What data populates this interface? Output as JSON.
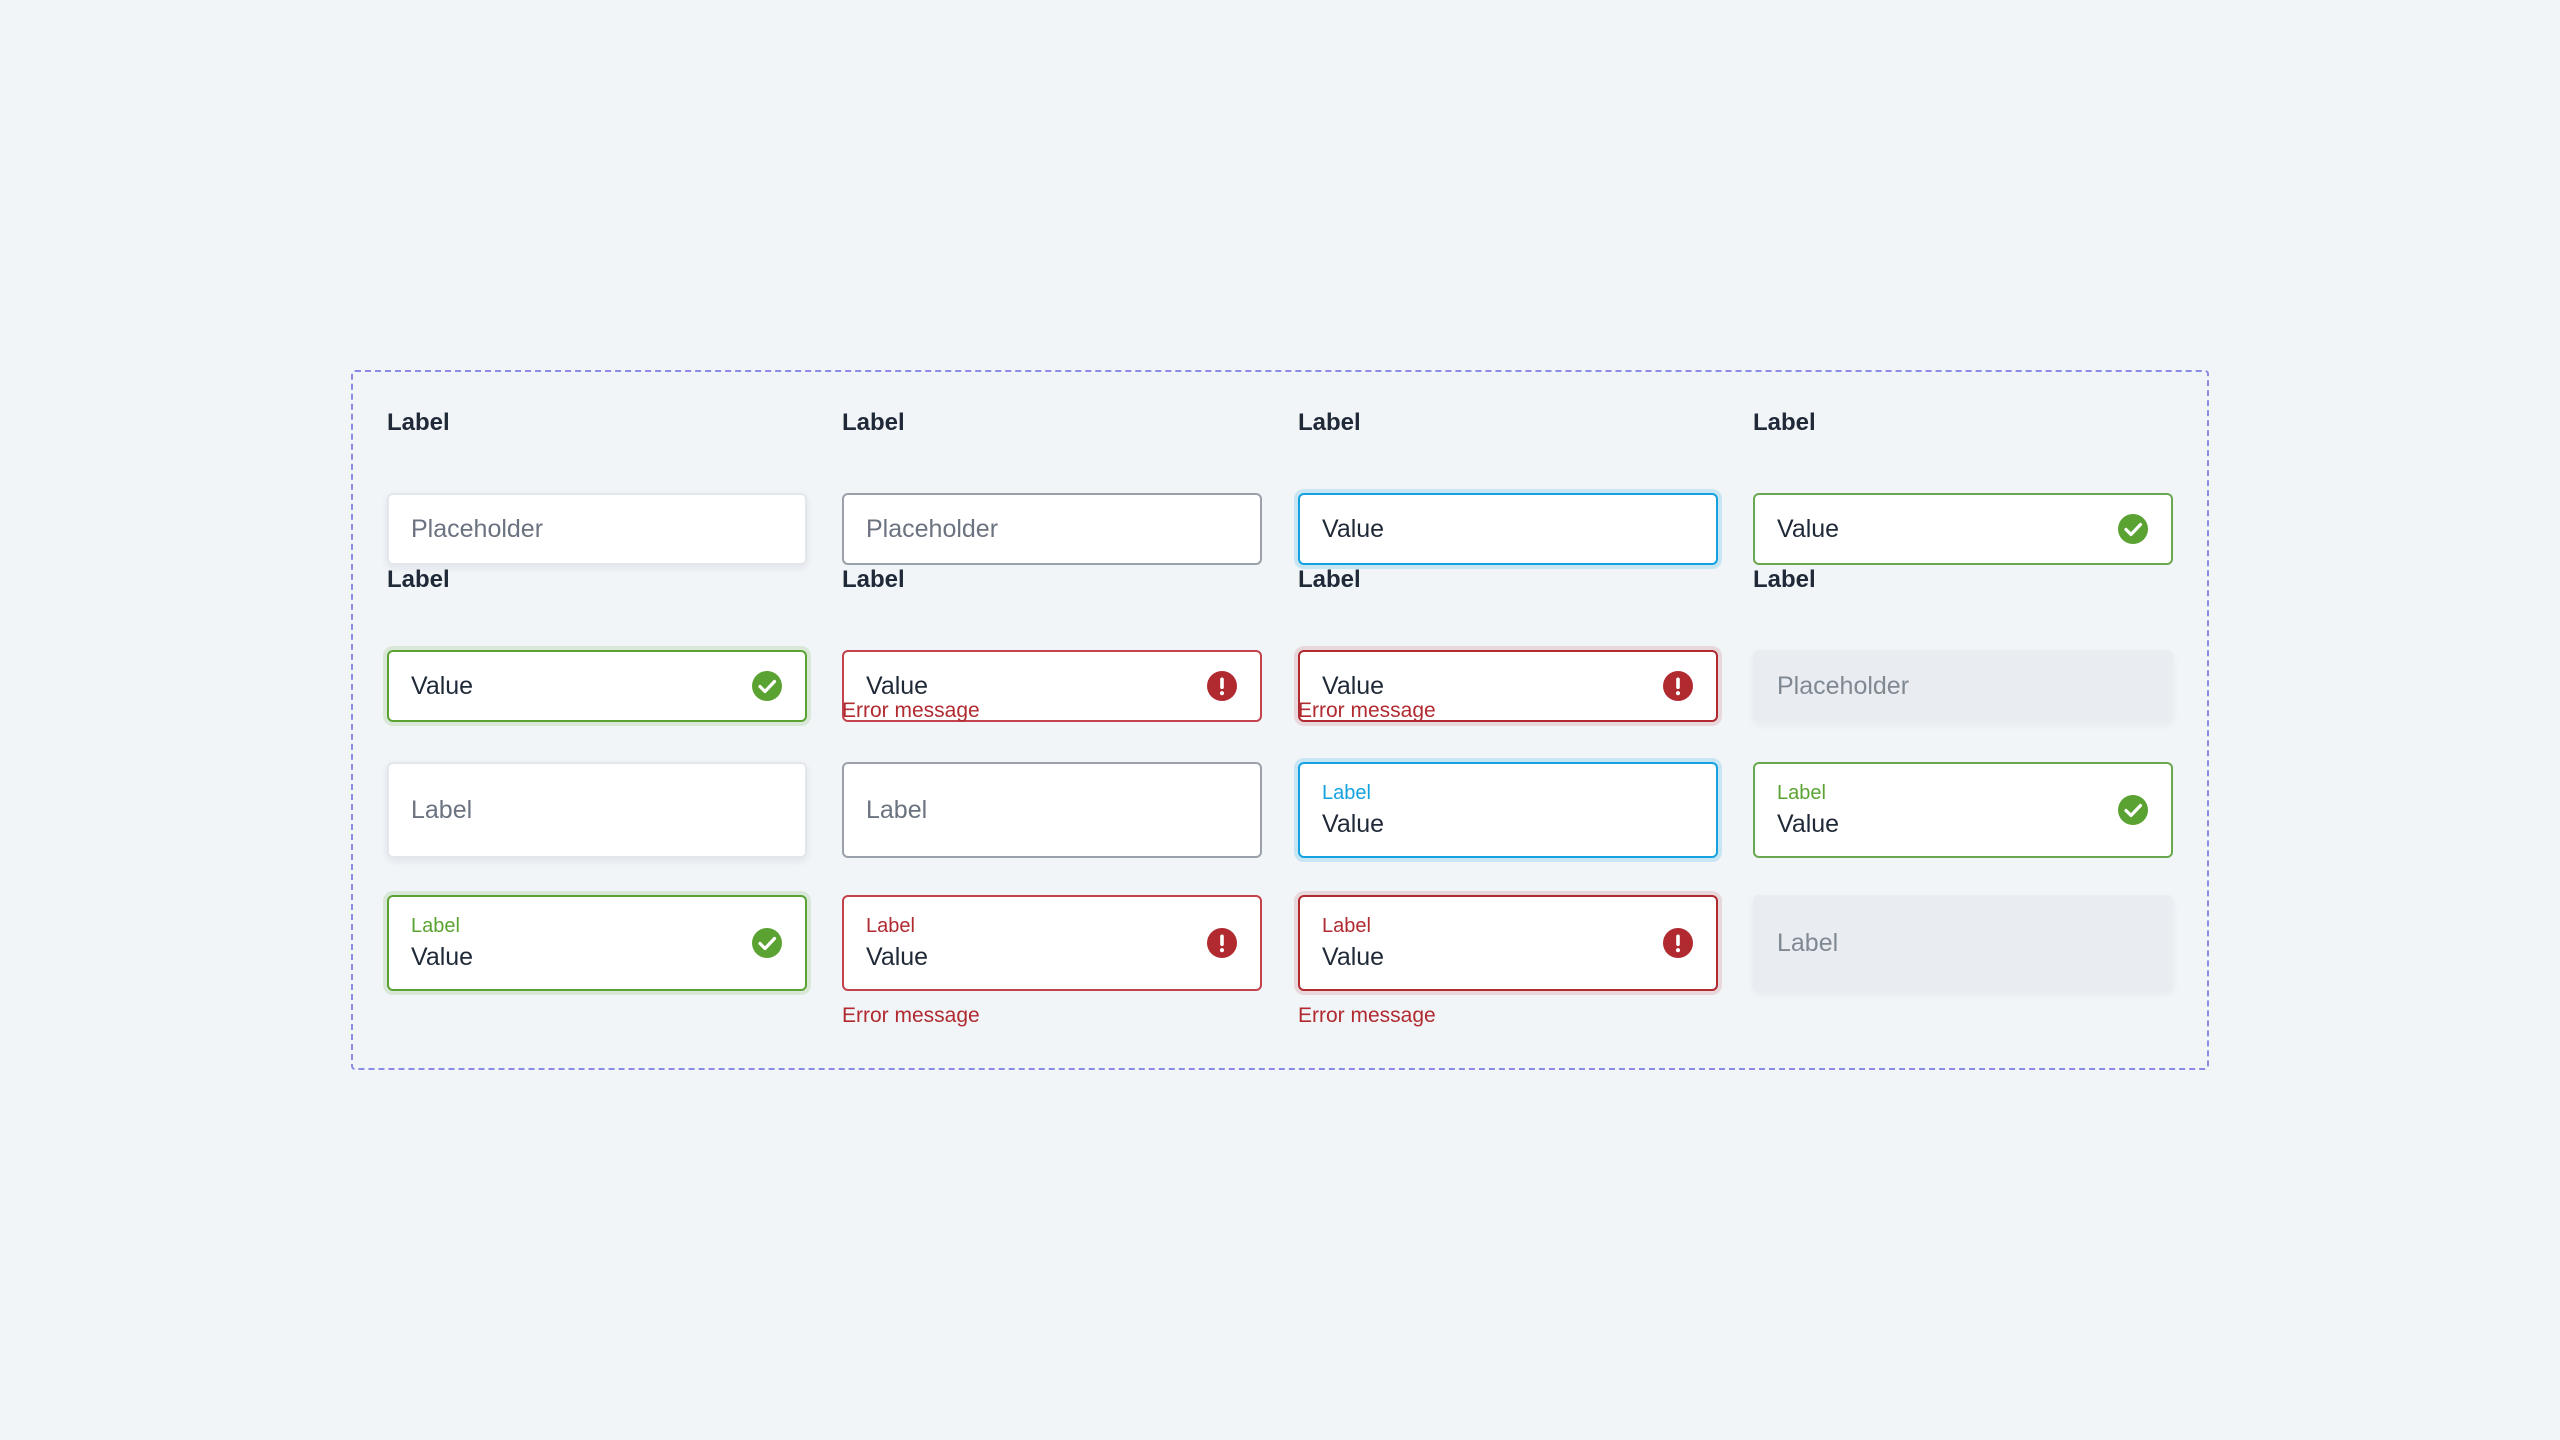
{
  "fields": [
    {
      "label": "Label",
      "placeholder": "Placeholder"
    },
    {
      "label": "Label",
      "placeholder": "Placeholder"
    },
    {
      "label": "Label",
      "value": "Value"
    },
    {
      "label": "Label",
      "value": "Value",
      "icon": "check-circle-icon"
    },
    {
      "label": "Label",
      "value": "Value",
      "icon": "check-circle-icon"
    },
    {
      "label": "Label",
      "value": "Value",
      "icon": "exclamation-circle-icon",
      "error": "Error message"
    },
    {
      "label": "Label",
      "value": "Value",
      "icon": "exclamation-circle-icon",
      "error": "Error message"
    },
    {
      "label": "Label",
      "placeholder": "Placeholder"
    }
  ],
  "floating_fields": [
    {
      "placeholder": "Label"
    },
    {
      "placeholder": "Label"
    },
    {
      "label": "Label",
      "value": "Value"
    },
    {
      "label": "Label",
      "value": "Value",
      "icon": "check-circle-icon"
    },
    {
      "label": "Label",
      "value": "Value",
      "icon": "check-circle-icon"
    },
    {
      "label": "Label",
      "value": "Value",
      "icon": "exclamation-circle-icon",
      "error": "Error message"
    },
    {
      "label": "Label",
      "value": "Value",
      "icon": "exclamation-circle-icon",
      "error": "Error message"
    },
    {
      "placeholder": "Label"
    }
  ],
  "colors": {
    "background": "#f1f5f8",
    "frame_border": "#8b8ce6",
    "focus": "#13a2df",
    "success": "#5aa332",
    "error": "#b02a30",
    "text": "#1f2937",
    "placeholder": "#6b7280",
    "disabled_fill": "#e9edf1"
  }
}
